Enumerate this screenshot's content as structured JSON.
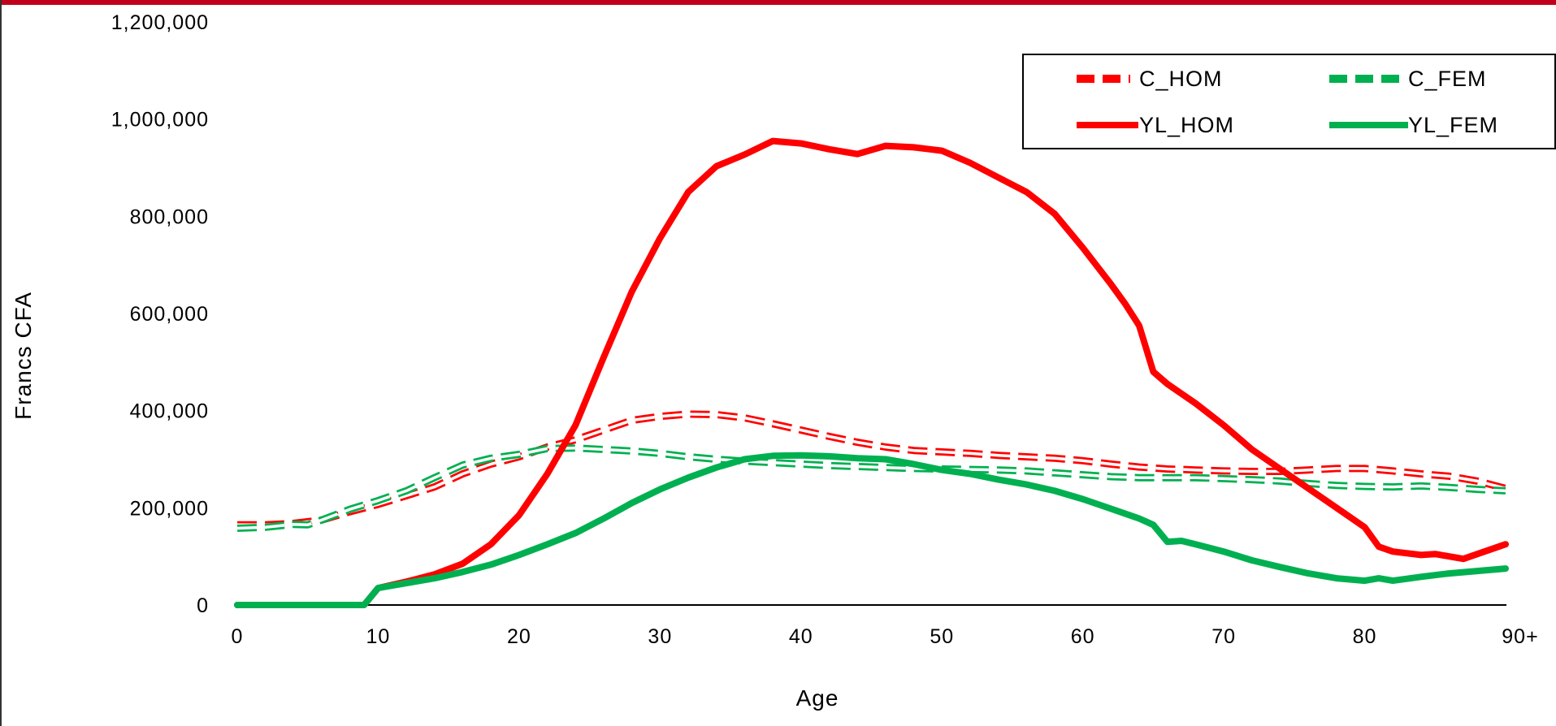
{
  "chart_data": {
    "type": "line",
    "title": "",
    "xlabel": "Age",
    "ylabel": "Francs CFA",
    "xlim": [
      0,
      90
    ],
    "ylim": [
      0,
      1200000
    ],
    "x_ticks": [
      0,
      10,
      20,
      30,
      40,
      50,
      60,
      70,
      80,
      90
    ],
    "x_tick_labels": [
      "0",
      "10",
      "20",
      "30",
      "40",
      "50",
      "60",
      "70",
      "80",
      "90+"
    ],
    "y_ticks": [
      0,
      200000,
      400000,
      600000,
      800000,
      1000000,
      1200000
    ],
    "y_tick_labels": [
      "0",
      "200,000",
      "400,000",
      "600,000",
      "800,000",
      "1,000,000",
      "1,200,000"
    ],
    "legend_position": "top-right",
    "grid": false,
    "series": [
      {
        "name": "C_HOM",
        "color": "#ff0000",
        "style": "dashed",
        "points": [
          [
            0,
            165000
          ],
          [
            2,
            165000
          ],
          [
            4,
            168000
          ],
          [
            6,
            175000
          ],
          [
            8,
            192000
          ],
          [
            10,
            207000
          ],
          [
            12,
            225000
          ],
          [
            14,
            243000
          ],
          [
            16,
            270000
          ],
          [
            18,
            290000
          ],
          [
            20,
            305000
          ],
          [
            22,
            325000
          ],
          [
            24,
            340000
          ],
          [
            26,
            360000
          ],
          [
            28,
            380000
          ],
          [
            30,
            388000
          ],
          [
            32,
            393000
          ],
          [
            34,
            392000
          ],
          [
            36,
            385000
          ],
          [
            38,
            373000
          ],
          [
            40,
            360000
          ],
          [
            42,
            347000
          ],
          [
            44,
            335000
          ],
          [
            46,
            325000
          ],
          [
            48,
            318000
          ],
          [
            50,
            315000
          ],
          [
            52,
            312000
          ],
          [
            54,
            308000
          ],
          [
            56,
            305000
          ],
          [
            58,
            302000
          ],
          [
            60,
            297000
          ],
          [
            62,
            290000
          ],
          [
            64,
            284000
          ],
          [
            66,
            280000
          ],
          [
            68,
            278000
          ],
          [
            70,
            276000
          ],
          [
            72,
            275000
          ],
          [
            74,
            275000
          ],
          [
            76,
            278000
          ],
          [
            78,
            281000
          ],
          [
            80,
            281000
          ],
          [
            82,
            276000
          ],
          [
            84,
            270000
          ],
          [
            86,
            265000
          ],
          [
            88,
            255000
          ],
          [
            90,
            240000
          ]
        ]
      },
      {
        "name": "C_FEM",
        "color": "#00b050",
        "style": "dashed",
        "points": [
          [
            0,
            158000
          ],
          [
            2,
            160000
          ],
          [
            4,
            166000
          ],
          [
            5,
            165000
          ],
          [
            6,
            175000
          ],
          [
            8,
            197000
          ],
          [
            10,
            215000
          ],
          [
            12,
            235000
          ],
          [
            14,
            262000
          ],
          [
            16,
            288000
          ],
          [
            18,
            302000
          ],
          [
            20,
            310000
          ],
          [
            22,
            322000
          ],
          [
            24,
            323000
          ],
          [
            26,
            320000
          ],
          [
            28,
            317000
          ],
          [
            30,
            312000
          ],
          [
            32,
            305000
          ],
          [
            34,
            300000
          ],
          [
            36,
            296000
          ],
          [
            38,
            293000
          ],
          [
            40,
            290000
          ],
          [
            42,
            287000
          ],
          [
            44,
            285000
          ],
          [
            46,
            283000
          ],
          [
            48,
            281000
          ],
          [
            50,
            280000
          ],
          [
            52,
            279000
          ],
          [
            54,
            278000
          ],
          [
            56,
            276000
          ],
          [
            58,
            272000
          ],
          [
            60,
            268000
          ],
          [
            62,
            264000
          ],
          [
            64,
            262000
          ],
          [
            66,
            262000
          ],
          [
            68,
            262000
          ],
          [
            70,
            260000
          ],
          [
            72,
            258000
          ],
          [
            74,
            255000
          ],
          [
            76,
            250000
          ],
          [
            78,
            246000
          ],
          [
            80,
            244000
          ],
          [
            82,
            243000
          ],
          [
            84,
            245000
          ],
          [
            86,
            242000
          ],
          [
            88,
            238000
          ],
          [
            90,
            235000
          ]
        ]
      },
      {
        "name": "YL_HOM",
        "color": "#ff0000",
        "style": "solid",
        "points": [
          [
            0,
            0
          ],
          [
            9,
            0
          ],
          [
            10,
            35000
          ],
          [
            12,
            48000
          ],
          [
            14,
            63000
          ],
          [
            16,
            85000
          ],
          [
            18,
            125000
          ],
          [
            20,
            185000
          ],
          [
            22,
            270000
          ],
          [
            24,
            370000
          ],
          [
            26,
            510000
          ],
          [
            28,
            645000
          ],
          [
            30,
            755000
          ],
          [
            32,
            850000
          ],
          [
            34,
            903000
          ],
          [
            36,
            927000
          ],
          [
            38,
            955000
          ],
          [
            40,
            950000
          ],
          [
            42,
            938000
          ],
          [
            44,
            928000
          ],
          [
            46,
            945000
          ],
          [
            48,
            942000
          ],
          [
            50,
            935000
          ],
          [
            52,
            910000
          ],
          [
            54,
            880000
          ],
          [
            56,
            850000
          ],
          [
            58,
            805000
          ],
          [
            60,
            735000
          ],
          [
            62,
            660000
          ],
          [
            63,
            620000
          ],
          [
            64,
            575000
          ],
          [
            65,
            480000
          ],
          [
            66,
            455000
          ],
          [
            68,
            415000
          ],
          [
            70,
            370000
          ],
          [
            72,
            320000
          ],
          [
            74,
            280000
          ],
          [
            76,
            240000
          ],
          [
            78,
            200000
          ],
          [
            80,
            160000
          ],
          [
            81,
            120000
          ],
          [
            82,
            110000
          ],
          [
            84,
            103000
          ],
          [
            85,
            105000
          ],
          [
            86,
            100000
          ],
          [
            87,
            95000
          ],
          [
            88,
            105000
          ],
          [
            90,
            125000
          ]
        ]
      },
      {
        "name": "YL_FEM",
        "color": "#00b050",
        "style": "solid",
        "points": [
          [
            0,
            0
          ],
          [
            9,
            0
          ],
          [
            10,
            35000
          ],
          [
            12,
            45000
          ],
          [
            14,
            55000
          ],
          [
            16,
            68000
          ],
          [
            18,
            83000
          ],
          [
            20,
            103000
          ],
          [
            22,
            125000
          ],
          [
            24,
            148000
          ],
          [
            26,
            178000
          ],
          [
            28,
            210000
          ],
          [
            30,
            238000
          ],
          [
            32,
            262000
          ],
          [
            34,
            283000
          ],
          [
            36,
            300000
          ],
          [
            38,
            307000
          ],
          [
            40,
            308000
          ],
          [
            42,
            306000
          ],
          [
            44,
            302000
          ],
          [
            46,
            300000
          ],
          [
            48,
            290000
          ],
          [
            50,
            278000
          ],
          [
            52,
            270000
          ],
          [
            54,
            258000
          ],
          [
            56,
            248000
          ],
          [
            58,
            235000
          ],
          [
            60,
            218000
          ],
          [
            62,
            198000
          ],
          [
            64,
            178000
          ],
          [
            65,
            165000
          ],
          [
            66,
            130000
          ],
          [
            67,
            132000
          ],
          [
            68,
            125000
          ],
          [
            70,
            110000
          ],
          [
            72,
            92000
          ],
          [
            74,
            78000
          ],
          [
            76,
            65000
          ],
          [
            78,
            55000
          ],
          [
            80,
            50000
          ],
          [
            81,
            55000
          ],
          [
            82,
            50000
          ],
          [
            84,
            58000
          ],
          [
            86,
            65000
          ],
          [
            88,
            70000
          ],
          [
            90,
            75000
          ]
        ]
      }
    ]
  }
}
